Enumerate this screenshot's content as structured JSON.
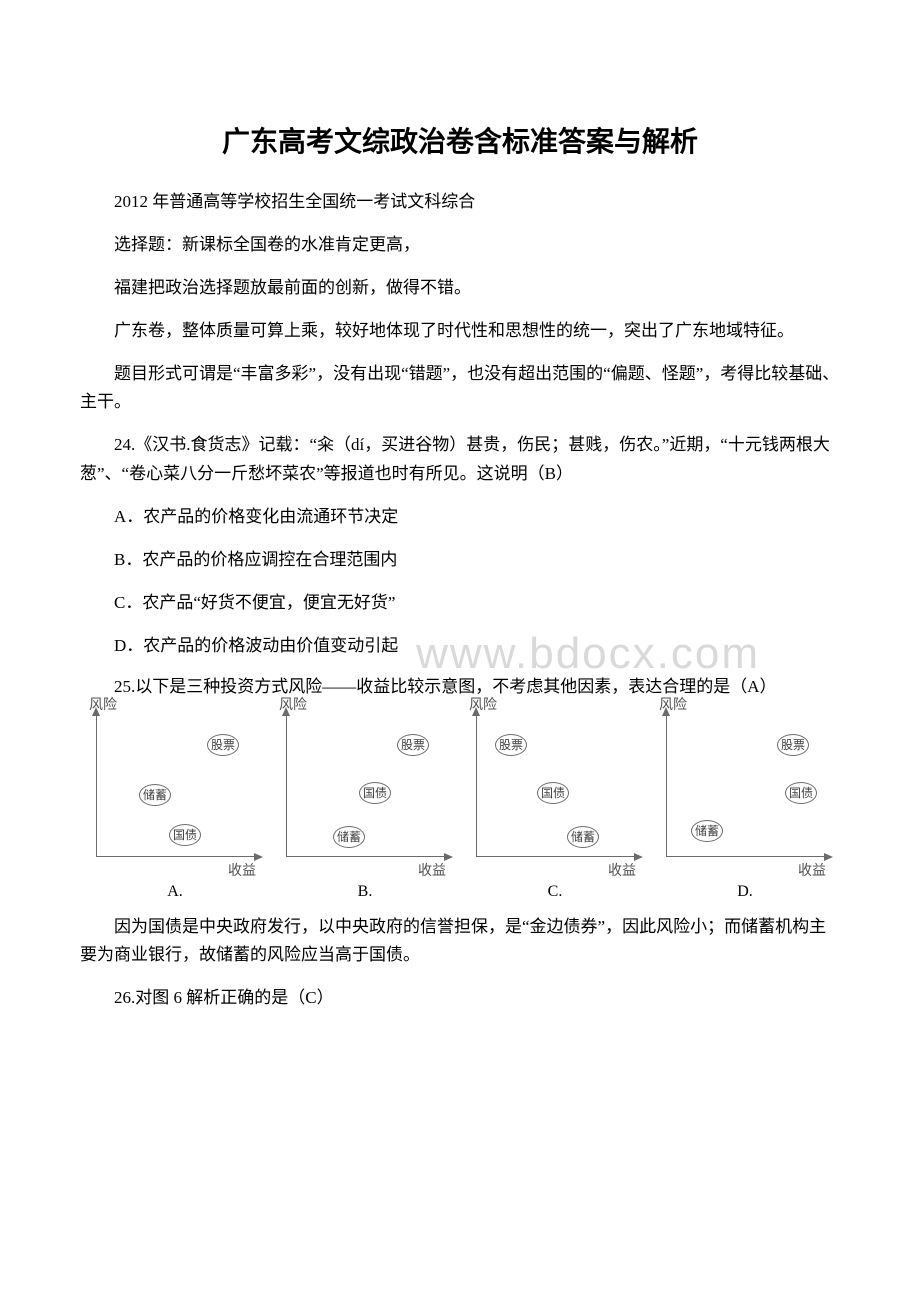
{
  "title": "广东高考文综政治卷含标准答案与解析",
  "p1": "2012 年普通高等学校招生全国统一考试文科综合",
  "p2": "选择题：新课标全国卷的水准肯定更高，",
  "p3": "福建把政治选择题放最前面的创新，做得不错。",
  "p4": "广东卷，整体质量可算上乘，较好地体现了时代性和思想性的统一，突出了广东地域特征。",
  "p5": "题目形式可谓是“丰富多彩”，没有出现“错题”，也没有超出范围的“偏题、怪题”，考得比较基础、主干。",
  "q24": "24.《汉书.食货志》记载：“籴（dí，买进谷物）甚贵，伤民；甚贱，伤农。”近期，“十元钱两根大葱”、“卷心菜八分一斤愁坏菜农”等报道也时有所见。这说明（B）",
  "q24A": "A．农产品的价格变化由流通环节决定",
  "q24B": "B．农产品的价格应调控在合理范围内",
  "q24C": "C．农产品“好货不便宜，便宜无好货”",
  "q24D": "D．农产品的价格波动由价值变动引起",
  "q25": "25.以下是三种投资方式风险——收益比较示意图，不考虑其他因素，表达合理的是（A）",
  "q25expl": "因为国债是中央政府发行，以中央政府的信誉担保，是“金边债券”，因此风险小；而储蓄机构主要为商业银行，故储蓄的风险应当高于国债。",
  "q26": "26.对图 6 解析正确的是（C）",
  "watermark": "www.bdocx.com",
  "chart": {
    "ylabel": "风险",
    "xlabel": "收益",
    "labels": {
      "stock": "股票",
      "bond": "国债",
      "save": "储蓄"
    },
    "panel_labels": [
      "A.",
      "B.",
      "C.",
      "D."
    ],
    "axis_color": "#6b6b6b",
    "text_color": "#404040",
    "panels": [
      {
        "stock": [
          110,
          18
        ],
        "save": [
          42,
          68
        ],
        "bond": [
          72,
          108
        ]
      },
      {
        "stock": [
          110,
          18
        ],
        "bond": [
          72,
          66
        ],
        "save": [
          46,
          110
        ]
      },
      {
        "stock": [
          18,
          18
        ],
        "bond": [
          60,
          66
        ],
        "save": [
          90,
          110
        ]
      },
      {
        "stock": [
          110,
          18
        ],
        "bond": [
          118,
          66
        ],
        "save": [
          24,
          104
        ]
      }
    ]
  }
}
